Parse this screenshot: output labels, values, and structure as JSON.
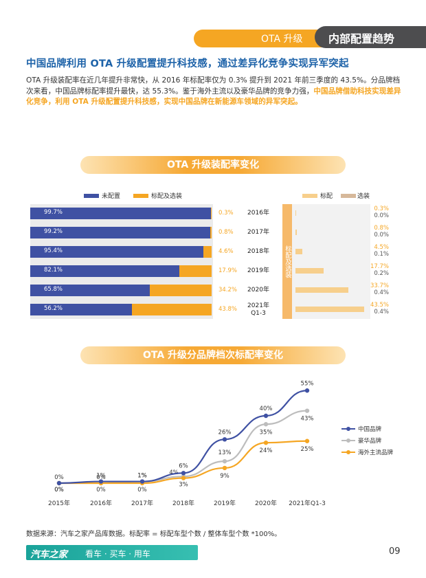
{
  "header": {
    "section_label": "OTA 升级",
    "section_title": "内部配置趋势"
  },
  "headline": "中国品牌利用 OTA 升级配置提升科技感，通过差异化竞争实现异军突起",
  "paragraph": {
    "part1": "OTA 升级装配率在近几年提升非常快，从 2016 年标配率仅为 0.3% 提升到 2021 年前三季度的 43.5%。分品牌档次来看，中国品牌标配率提升最快，达 55.3%。鉴于海外主流以及豪华品牌的竞争力强，",
    "highlight": "中国品牌借助科技实现差异化竞争，利用 OTA 升级配置提升科技感，实现中国品牌在新能源车领域的异军突起。"
  },
  "chart1_title": "OTA 升级装配率变化",
  "chart2_title": "OTA 升级分品牌档次标配率变化",
  "colors": {
    "orange": "#f5a623",
    "blue": "#3f51a3",
    "gray": "#bdbdbd",
    "teal": "#1aa39a"
  },
  "chart_data": [
    {
      "type": "bar",
      "orientation": "horizontal-stacked",
      "legend": [
        "未配置",
        "标配及选装"
      ],
      "categories": [
        "2016年",
        "2017年",
        "2018年",
        "2019年",
        "2020年",
        "2021年 Q1-3"
      ],
      "category_lines": [
        [
          "2016年"
        ],
        [
          "2017年"
        ],
        [
          "2018年"
        ],
        [
          "2019年"
        ],
        [
          "2020年"
        ],
        [
          "2021年",
          "Q1-3"
        ]
      ],
      "series": [
        {
          "name": "未配置",
          "values": [
            99.7,
            99.2,
            95.4,
            82.1,
            65.8,
            56.2
          ],
          "labels": [
            "99.7%",
            "99.2%",
            "95.4%",
            "82.1%",
            "65.8%",
            "56.2%"
          ]
        },
        {
          "name": "标配及选装",
          "values": [
            0.3,
            0.8,
            4.6,
            17.9,
            34.2,
            43.8
          ],
          "labels": [
            "0.3%",
            "0.8%",
            "4.6%",
            "17.9%",
            "34.2%",
            "43.8%"
          ]
        }
      ]
    },
    {
      "type": "bar",
      "orientation": "horizontal",
      "group_label": "标配及选装",
      "legend": [
        "标配",
        "选装"
      ],
      "categories": [
        "2016年",
        "2017年",
        "2018年",
        "2019年",
        "2020年",
        "2021年 Q1-3"
      ],
      "series": [
        {
          "name": "标配",
          "values": [
            0.3,
            0.8,
            4.5,
            17.7,
            33.7,
            43.5
          ],
          "labels": [
            "0.3%",
            "0.8%",
            "4.5%",
            "17.7%",
            "33.7%",
            "43.5%"
          ]
        },
        {
          "name": "选装",
          "values": [
            0.0,
            0.0,
            0.1,
            0.2,
            0.4,
            0.4
          ],
          "labels": [
            "0.0%",
            "0.0%",
            "0.1%",
            "0.2%",
            "0.4%",
            "0.4%"
          ]
        }
      ]
    },
    {
      "type": "line",
      "x": [
        "2015年",
        "2016年",
        "2017年",
        "2018年",
        "2019年",
        "2020年",
        "2021年Q1-3"
      ],
      "ylim": [
        0,
        60
      ],
      "series": [
        {
          "name": "中国品牌",
          "color": "#3f51a3",
          "values": [
            0,
            1,
            1,
            6,
            26,
            40,
            55
          ],
          "labels": [
            "0%",
            "1%",
            "1%",
            "6%",
            "26%",
            "40%",
            "55%"
          ]
        },
        {
          "name": "豪华品牌",
          "color": "#bdbdbd",
          "values": [
            0,
            0,
            1,
            4,
            13,
            35,
            43
          ],
          "labels": [
            "0%",
            "0%",
            "1%",
            "4%",
            "13%",
            "35%",
            "43%"
          ]
        },
        {
          "name": "海外主流品牌",
          "color": "#f5a623",
          "values": [
            0,
            0,
            0,
            3,
            9,
            24,
            25
          ],
          "labels": [
            "0%",
            "0%",
            "0%",
            "3%",
            "9%",
            "24%",
            "25%"
          ]
        }
      ]
    }
  ],
  "source_note": "数据来源：汽车之家产品库数据。标配率 = 标配车型个数 / 整体车型个数 *100%。",
  "footer": {
    "brand": "汽车之家",
    "slogan": "看车 · 买车 · 用车",
    "page_number": "09"
  }
}
